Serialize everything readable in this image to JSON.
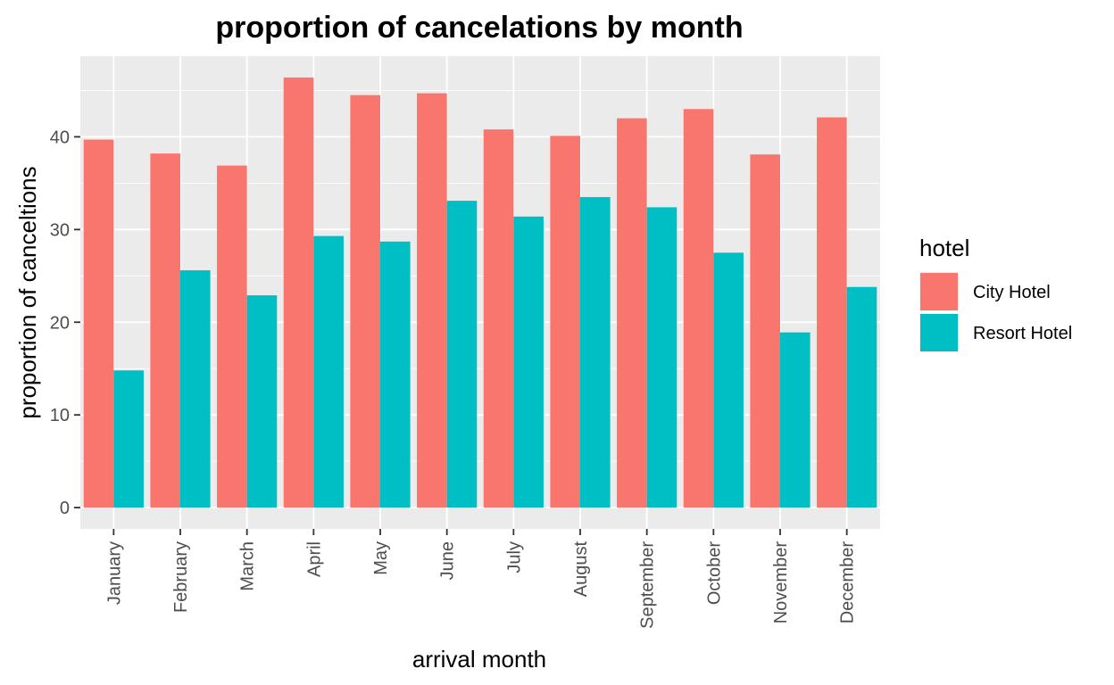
{
  "chart_data": {
    "type": "bar",
    "title": "proportion of cancelations by month",
    "xlabel": "arrival month",
    "ylabel": "proportion of canceltions",
    "categories": [
      "January",
      "February",
      "March",
      "April",
      "May",
      "June",
      "July",
      "August",
      "September",
      "October",
      "November",
      "December"
    ],
    "series": [
      {
        "name": "City Hotel",
        "color": "#F8766D",
        "values": [
          39.7,
          38.2,
          36.9,
          46.4,
          44.5,
          44.7,
          40.8,
          40.1,
          42.0,
          43.0,
          38.1,
          42.1
        ]
      },
      {
        "name": "Resort Hotel",
        "color": "#00BFC4",
        "values": [
          14.8,
          25.6,
          22.9,
          29.3,
          28.7,
          33.1,
          31.4,
          33.5,
          32.4,
          27.5,
          18.9,
          23.8
        ]
      }
    ],
    "ylim": [
      -2.3,
      48.7
    ],
    "yticks": [
      0,
      10,
      20,
      30,
      40
    ],
    "grid": true,
    "legend": {
      "title": "hotel",
      "position": "right"
    },
    "panel_background": "#EBEBEB"
  }
}
